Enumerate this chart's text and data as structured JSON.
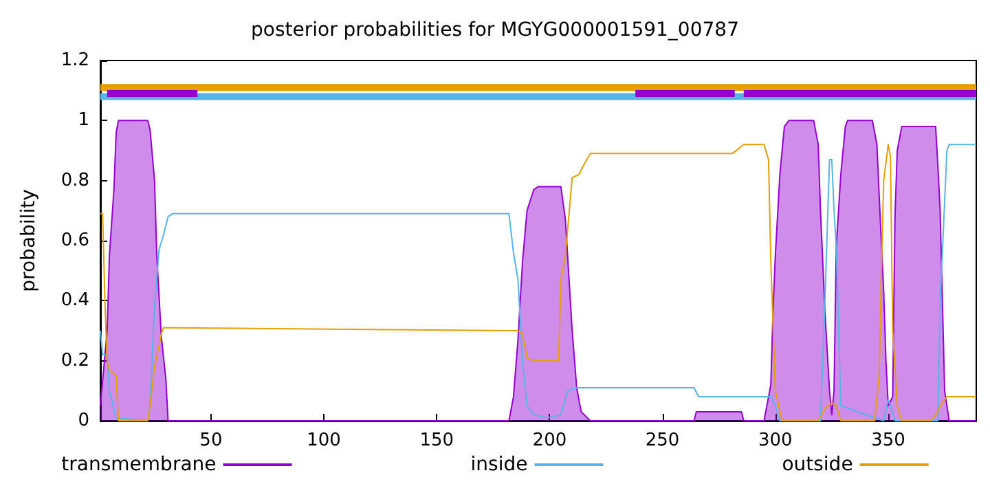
{
  "chart_data": {
    "type": "line",
    "title": "posterior probabilities for MGYG000001591_00787",
    "ylabel": "probability",
    "xlim": [
      1,
      389
    ],
    "xticks": [
      50,
      100,
      150,
      200,
      250,
      300,
      350
    ],
    "ylim": [
      0,
      1.2
    ],
    "yticks": [
      0,
      0.2,
      0.4,
      0.6,
      0.8,
      1,
      1.2
    ],
    "grid": false,
    "legend": "bottom",
    "marker": "none",
    "line_style": "solid",
    "series": [
      {
        "name": "transmembrane",
        "type": "area",
        "color": "#9400d3",
        "x": [
          1,
          4,
          5,
          7,
          8,
          9,
          22,
          23,
          25,
          26,
          28,
          30,
          31,
          182,
          184,
          186,
          188,
          190,
          193,
          195,
          205,
          207,
          210,
          212,
          214,
          218,
          264,
          265,
          285,
          286,
          295,
          298,
          299,
          300,
          302,
          304,
          306,
          317,
          319,
          320,
          322,
          324,
          325,
          326,
          327,
          329,
          331,
          332,
          343,
          345,
          346,
          348,
          349,
          350,
          352,
          353,
          354,
          356,
          371,
          372,
          373,
          374,
          375,
          377,
          389
        ],
        "values": [
          0.05,
          0.3,
          0.55,
          0.77,
          0.96,
          1,
          1,
          0.97,
          0.8,
          0.55,
          0.28,
          0.14,
          0,
          0,
          0.08,
          0.27,
          0.53,
          0.7,
          0.77,
          0.78,
          0.78,
          0.67,
          0.3,
          0.11,
          0.03,
          0,
          0,
          0.03,
          0.03,
          0,
          0,
          0.12,
          0.37,
          0.55,
          0.82,
          0.98,
          1,
          1,
          0.92,
          0.7,
          0.36,
          0.1,
          0.02,
          0.1,
          0.58,
          0.82,
          0.98,
          1,
          1,
          0.92,
          0.75,
          0.43,
          0.2,
          0.05,
          0.08,
          0.68,
          0.9,
          0.98,
          0.98,
          0.85,
          0.7,
          0.4,
          0.1,
          0,
          0
        ]
      },
      {
        "name": "inside",
        "color": "#56b4e9",
        "x": [
          1,
          2,
          4,
          5,
          8,
          22,
          23,
          25,
          27,
          29,
          31,
          33,
          182,
          184,
          186,
          188,
          190,
          193,
          199,
          205,
          208,
          212,
          264,
          266,
          298,
          300,
          302,
          320,
          322,
          324,
          325,
          326,
          327,
          329,
          348,
          350,
          351,
          353,
          372,
          373,
          374,
          376,
          377,
          380,
          389
        ],
        "values": [
          0.3,
          0.22,
          0.22,
          0.1,
          0.01,
          0,
          0.05,
          0.38,
          0.57,
          0.62,
          0.68,
          0.69,
          0.69,
          0.56,
          0.47,
          0.2,
          0.05,
          0.02,
          0.01,
          0.02,
          0.1,
          0.11,
          0.11,
          0.08,
          0.08,
          0.05,
          0,
          0,
          0.41,
          0.87,
          0.87,
          0.7,
          0.58,
          0.05,
          0,
          0.07,
          0.05,
          0,
          0,
          0.4,
          0.56,
          0.9,
          0.92,
          0.92,
          0.92
        ]
      },
      {
        "name": "outside",
        "color": "#e69f00",
        "x": [
          1,
          2,
          3,
          4,
          5,
          8,
          9,
          22,
          23,
          25,
          27,
          28,
          29,
          31,
          186,
          188,
          190,
          193,
          204,
          205,
          207,
          210,
          213,
          215,
          218,
          234,
          281,
          286,
          295,
          297,
          298,
          300,
          303,
          319,
          322,
          325,
          327,
          329,
          344,
          346,
          347,
          348,
          350,
          351,
          352,
          354,
          356,
          369,
          371,
          374,
          376,
          389
        ],
        "values": [
          0.69,
          0.69,
          0.4,
          0.2,
          0.17,
          0.15,
          0,
          0,
          0.05,
          0.18,
          0.25,
          0.29,
          0.31,
          0.31,
          0.3,
          0.29,
          0.21,
          0.2,
          0.2,
          0.47,
          0.55,
          0.81,
          0.82,
          0.85,
          0.89,
          0.89,
          0.89,
          0.92,
          0.92,
          0.87,
          0.53,
          0.1,
          0,
          0,
          0.04,
          0.06,
          0.05,
          0,
          0,
          0.15,
          0.5,
          0.8,
          0.92,
          0.88,
          0.3,
          0.05,
          0,
          0,
          0.02,
          0.06,
          0.08,
          0.08
        ]
      },
      {
        "color": "#e69f00",
        "x": [
          1,
          389
        ],
        "values": [
          1.11,
          1.11
        ]
      },
      {
        "color": "#56b4e9",
        "x": [
          1,
          389
        ],
        "values": [
          1.08,
          1.08
        ]
      },
      {
        "color": "#9400d3",
        "x": [
          4,
          44,
          45,
          238,
          282,
          283,
          286,
          389
        ],
        "values": [
          1.09,
          1.09,
          null,
          1.09,
          1.09,
          null,
          1.09,
          1.09
        ]
      }
    ]
  }
}
